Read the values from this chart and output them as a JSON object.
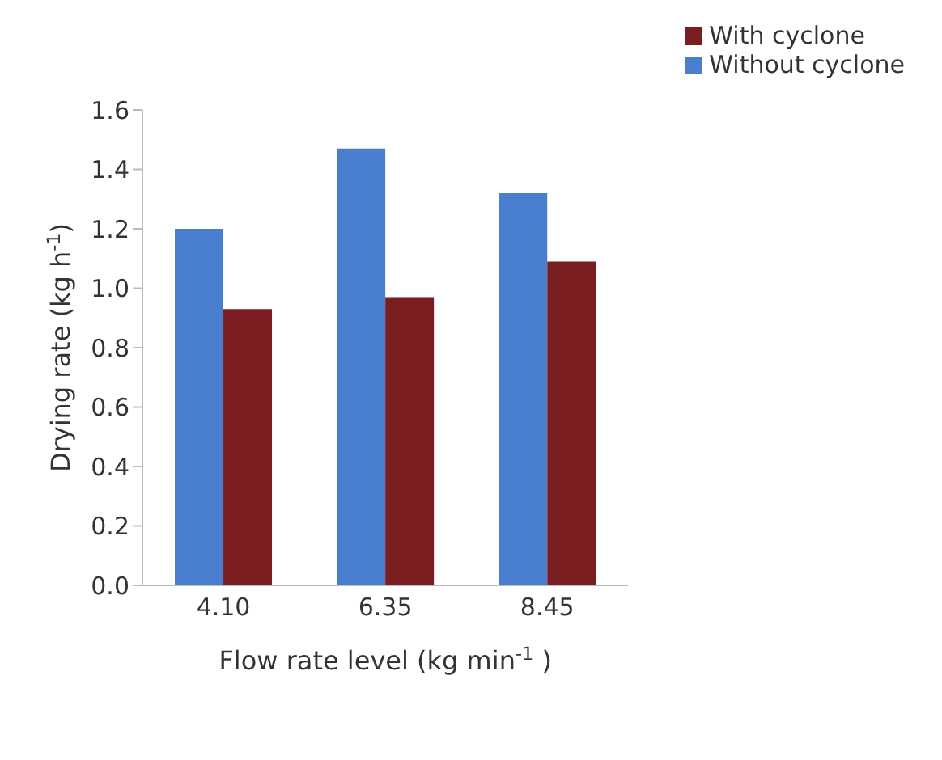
{
  "chart_data": {
    "type": "bar",
    "xlabel": "Flow rate level (kg min$^{-1}$ )",
    "ylabel": "Drying rate (kg h$^{-1}$)",
    "categories": [
      "4.10",
      "6.35",
      "8.45"
    ],
    "series": [
      {
        "name": "Without cyclone",
        "color": "#4a7fd0",
        "values": [
          1.2,
          1.47,
          1.32
        ]
      },
      {
        "name": "With cyclone",
        "color": "#7a1e22",
        "values": [
          0.93,
          0.97,
          1.09
        ]
      }
    ],
    "ylim": [
      0,
      1.6
    ],
    "yticks": [
      "0.0",
      0.2,
      0.4,
      0.6,
      0.8,
      "1.0",
      1.2,
      1.4,
      1.6
    ],
    "grid": false,
    "legend": "top right"
  }
}
